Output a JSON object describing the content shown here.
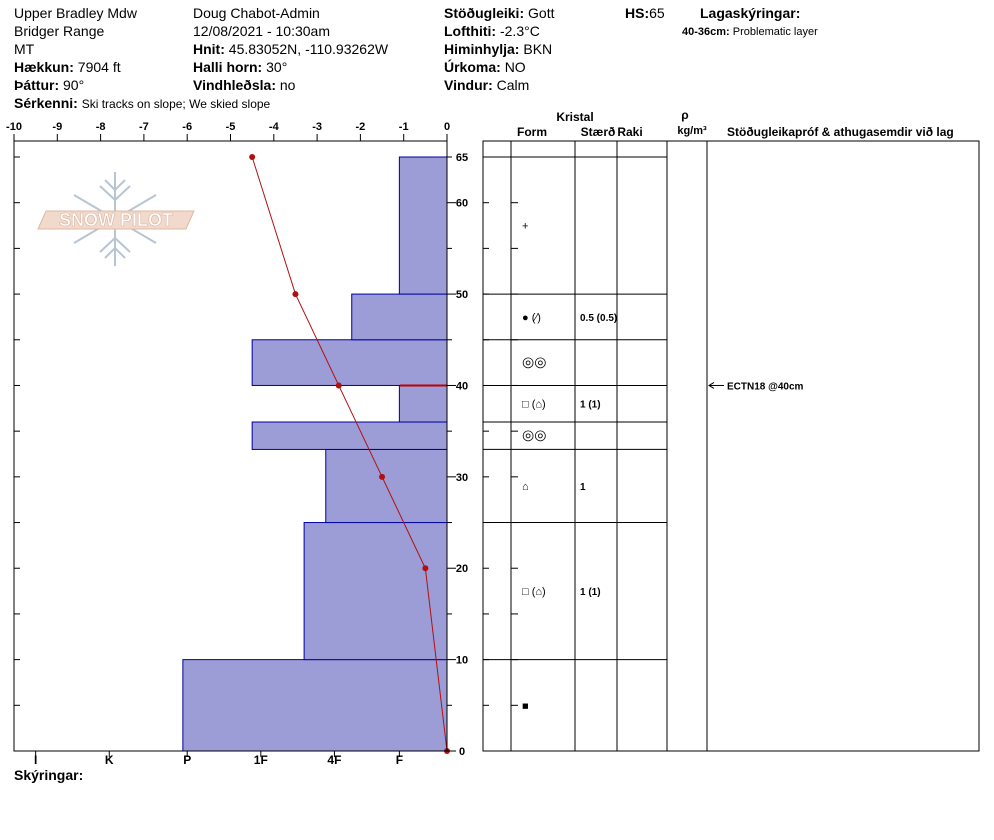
{
  "site": {
    "location": "Upper Bradley Mdw",
    "range": "Bridger Range",
    "state": "MT",
    "elevation_label": "Hækkun:",
    "elevation_value": "7904 ft",
    "aspect_label": "Þáttur:",
    "aspect_value": "90°",
    "features_label": "Sérkenni:",
    "features_value": "Ski tracks on slope; We skied slope"
  },
  "observer": {
    "name": "Doug Chabot-Admin",
    "datetime": "12/08/2021 - 10:30am",
    "coords_label": "Hnit:",
    "coords_value": "45.83052N, -110.93262W",
    "slope_label": "Halli horn:",
    "slope_value": "30°",
    "wind_loading_label": "Vindhleðsla:",
    "wind_loading_value": "no"
  },
  "conditions": {
    "stability_label": "Stöðugleiki:",
    "stability_value": "Gott",
    "air_temp_label": "Lofthiti:",
    "air_temp_value": "-2.3°C",
    "sky_label": "Himinhylja:",
    "sky_value": "BKN",
    "precip_label": "Úrkoma:",
    "precip_value": "NO",
    "wind_label": "Vindur:",
    "wind_value": "Calm",
    "hs_label": "HS:",
    "hs_value": "65"
  },
  "layer_notes": {
    "title": "Lagaskýringar:",
    "items": [
      {
        "range": "40-36cm:",
        "text": "Problematic layer"
      }
    ]
  },
  "logo": {
    "text": "SNOW PILOT"
  },
  "footer": {
    "legend_label": "Skýringar:"
  },
  "table_headers": {
    "crystal": "Kristal",
    "form": "Form",
    "size": "Stærð",
    "moisture": "Raki",
    "density_symbol": "ρ",
    "density_unit": "kg/m³",
    "tests_comments": "Stöðugleikapróf & athugasemdir við lag"
  },
  "colors": {
    "hardness_fill": "#9c9cd6",
    "hardness_stroke": "#0000a0",
    "temp_line": "#b01010",
    "weak_layer_mark": "#c00000"
  },
  "chart_data": {
    "type": "snow_profile",
    "temperature_axis": {
      "ticks": [
        -10,
        -9,
        -8,
        -7,
        -6,
        -5,
        -4,
        -3,
        -2,
        -1,
        0
      ],
      "range": [
        -10,
        0
      ]
    },
    "hardness_axis": {
      "labels": [
        "I",
        "K",
        "P",
        "1F",
        "4F",
        "F"
      ],
      "label_positions": [
        -9.5,
        -7.8,
        -6.0,
        -4.3,
        -2.6,
        -1.1
      ]
    },
    "height_axis": {
      "labels": [
        0,
        10,
        20,
        30,
        40,
        50,
        60,
        65
      ],
      "range": [
        0,
        65
      ],
      "minor_step": 5
    },
    "hardness_layers": [
      {
        "bottom": 0,
        "top": 10,
        "value": -6.1
      },
      {
        "bottom": 10,
        "top": 25,
        "value": -3.3
      },
      {
        "bottom": 25,
        "top": 33,
        "value": -2.8
      },
      {
        "bottom": 33,
        "top": 36,
        "value": -4.5
      },
      {
        "bottom": 36,
        "top": 40,
        "value": -1.1
      },
      {
        "bottom": 40,
        "top": 45,
        "value": -4.5
      },
      {
        "bottom": 45,
        "top": 50,
        "value": -2.2
      },
      {
        "bottom": 50,
        "top": 65,
        "value": -1.1
      }
    ],
    "weak_layer_height": 40,
    "temperature_profile": [
      {
        "height": 0,
        "temp": 0.0
      },
      {
        "height": 20,
        "temp": -0.5
      },
      {
        "height": 30,
        "temp": -1.5
      },
      {
        "height": 40,
        "temp": -2.5
      },
      {
        "height": 50,
        "temp": -3.5
      },
      {
        "height": 65,
        "temp": -4.5
      }
    ],
    "layer_boundaries": [
      0,
      10,
      25,
      33,
      36,
      40,
      45,
      50,
      65
    ],
    "crystals": [
      {
        "height": 57.5,
        "form": "+",
        "size": "",
        "moisture": ""
      },
      {
        "height": 47.5,
        "form": "● (⁄)",
        "size": "0.5 (0.5)",
        "moisture": ""
      },
      {
        "height": 42.5,
        "form": "◎◎",
        "size": "",
        "moisture": ""
      },
      {
        "height": 38.0,
        "form": "□ (⌂)",
        "size": "1 (1)",
        "moisture": ""
      },
      {
        "height": 34.5,
        "form": "◎◎",
        "size": "",
        "moisture": ""
      },
      {
        "height": 29.0,
        "form": "⌂",
        "size": "1",
        "moisture": ""
      },
      {
        "height": 17.5,
        "form": "□ (⌂)",
        "size": "1 (1)",
        "moisture": ""
      },
      {
        "height": 5.0,
        "form": "■",
        "size": "",
        "moisture": ""
      }
    ],
    "stability_tests": [
      {
        "height": 40,
        "text": "ECTN18 @40cm"
      }
    ]
  }
}
